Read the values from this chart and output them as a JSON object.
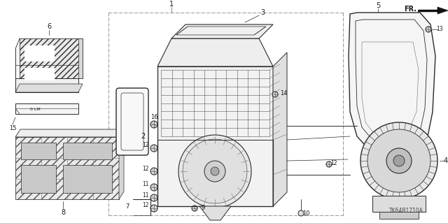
{
  "bg": "#ffffff",
  "lc": "#2a2a2a",
  "tc": "#1a1a1a",
  "ref": "TK64B1710A",
  "fw": 6.4,
  "fh": 3.19,
  "dpi": 100
}
